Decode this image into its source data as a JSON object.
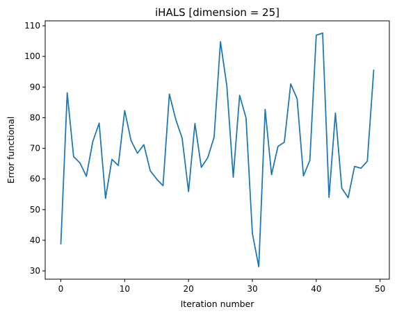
{
  "chart_data": {
    "type": "line",
    "title": "iHALS [dimension = 25]",
    "xlabel": "Iteration number",
    "ylabel": "Error functional",
    "xlim": [
      -2.45,
      51.45
    ],
    "ylim": [
      27.3,
      111.6
    ],
    "xticks": [
      0,
      10,
      20,
      30,
      40,
      50
    ],
    "yticks": [
      30,
      40,
      50,
      60,
      70,
      80,
      90,
      100,
      110
    ],
    "grid": false,
    "legend": "none",
    "series": [
      {
        "color": "#1f77b4",
        "x": [
          0,
          1,
          2,
          3,
          4,
          5,
          6,
          7,
          8,
          9,
          10,
          11,
          12,
          13,
          14,
          15,
          16,
          17,
          18,
          19,
          20,
          21,
          22,
          23,
          24,
          25,
          26,
          27,
          28,
          29,
          30,
          31,
          32,
          33,
          34,
          35,
          36,
          37,
          38,
          39,
          40,
          41,
          42,
          43,
          44,
          45,
          46,
          47,
          48,
          49
        ],
        "y": [
          38.8,
          88.1,
          67.3,
          65.2,
          60.9,
          72.2,
          78.2,
          53.7,
          66.4,
          64.4,
          82.3,
          72.5,
          68.4,
          71.2,
          62.7,
          60.0,
          57.8,
          87.7,
          79.4,
          73.3,
          55.9,
          78.1,
          63.8,
          66.9,
          73.6,
          104.8,
          90.3,
          60.6,
          87.3,
          80.0,
          42.2,
          31.4,
          82.7,
          61.4,
          70.6,
          72.0,
          91.0,
          86.2,
          61.0,
          66.1,
          106.9,
          107.6,
          54.0,
          81.5,
          57.0,
          53.9,
          64.1,
          63.5,
          65.8,
          95.5
        ]
      }
    ]
  }
}
